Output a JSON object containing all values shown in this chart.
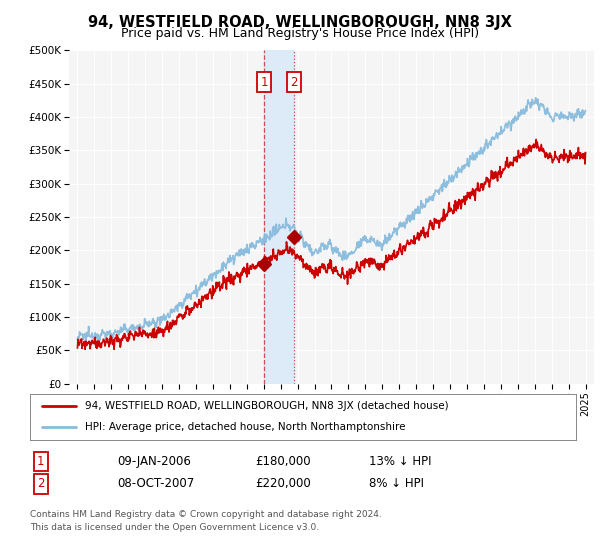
{
  "title": "94, WESTFIELD ROAD, WELLINGBOROUGH, NN8 3JX",
  "subtitle": "Price paid vs. HM Land Registry's House Price Index (HPI)",
  "ylim": [
    0,
    500000
  ],
  "yticks": [
    0,
    50000,
    100000,
    150000,
    200000,
    250000,
    300000,
    350000,
    400000,
    450000,
    500000
  ],
  "ytick_labels": [
    "£0",
    "£50K",
    "£100K",
    "£150K",
    "£200K",
    "£250K",
    "£300K",
    "£350K",
    "£400K",
    "£450K",
    "£500K"
  ],
  "background_color": "#ffffff",
  "plot_bg_color": "#f5f5f5",
  "grid_color": "#ffffff",
  "hpi_color": "#88bbdd",
  "price_color": "#cc0000",
  "marker_color": "#aa0000",
  "sale1_date_num": 2006.03,
  "sale1_price": 180000,
  "sale2_date_num": 2007.77,
  "sale2_price": 220000,
  "sale1_label": "1",
  "sale2_label": "2",
  "legend_line1": "94, WESTFIELD ROAD, WELLINGBOROUGH, NN8 3JX (detached house)",
  "legend_line2": "HPI: Average price, detached house, North Northamptonshire",
  "table_row1": [
    "1",
    "09-JAN-2006",
    "£180,000",
    "13% ↓ HPI"
  ],
  "table_row2": [
    "2",
    "08-OCT-2007",
    "£220,000",
    "8% ↓ HPI"
  ],
  "footnote1": "Contains HM Land Registry data © Crown copyright and database right 2024.",
  "footnote2": "This data is licensed under the Open Government Licence v3.0.",
  "title_fontsize": 10.5,
  "subtitle_fontsize": 9
}
